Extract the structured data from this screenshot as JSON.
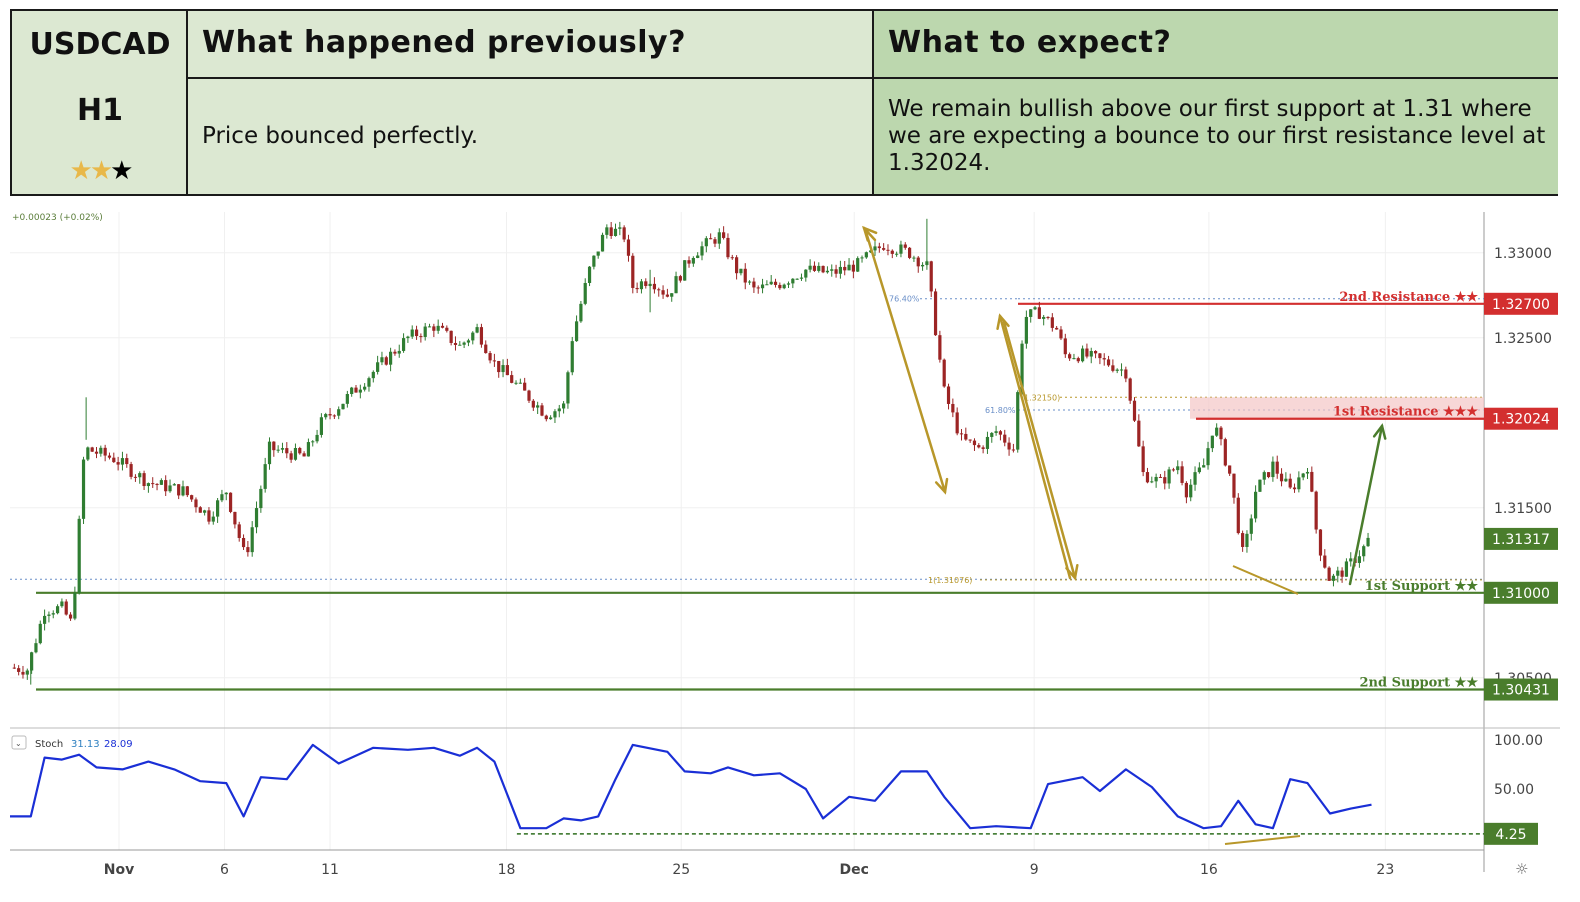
{
  "header": {
    "symbol": "USDCAD",
    "timeframe": "H1",
    "rating": {
      "filled": 2,
      "total": 3,
      "filled_color": "#e8b84a",
      "empty_color": "#000000"
    },
    "previous_title": "What happened previously?",
    "previous_text": "Price bounced perfectly.",
    "expect_title": "What to expect?",
    "expect_text": "We remain bullish above our first support at 1.31 where we are expecting a bounce to our first resistance level at 1.32024."
  },
  "colors": {
    "up_candle": "#2f7d32",
    "down_candle": "#9c2424",
    "resistance": "#d32f2f",
    "support": "#4a7d2c",
    "stoch_line": "#1a2fd6",
    "arrow_gold": "#b8972a",
    "arrow_green": "#4a7d2c",
    "fib": "#b8972a"
  },
  "chart_data": {
    "type": "candlestick",
    "change_readout": "+0.00023 (+0.02%)",
    "x_tick_labels": [
      "Nov",
      "6",
      "11",
      "18",
      "25",
      "Dec",
      "9",
      "16",
      "23"
    ],
    "y_tick_labels": [
      "1.33000",
      "1.32500",
      "1.31500",
      "1.30500"
    ],
    "ylim": [
      1.3024,
      1.3324
    ],
    "price_path": [
      [
        0,
        1.3056
      ],
      [
        1,
        1.3055
      ],
      [
        2,
        1.309
      ],
      [
        3,
        1.3091
      ],
      [
        3.6,
        1.3081
      ],
      [
        4.3,
        1.3185
      ],
      [
        6,
        1.3179
      ],
      [
        8,
        1.3165
      ],
      [
        10,
        1.316
      ],
      [
        11.5,
        1.3145
      ],
      [
        12.5,
        1.316
      ],
      [
        13.6,
        1.312
      ],
      [
        15,
        1.3185
      ],
      [
        17,
        1.318
      ],
      [
        18,
        1.32
      ],
      [
        19.5,
        1.3215
      ],
      [
        21,
        1.323
      ],
      [
        23,
        1.325
      ],
      [
        24.5,
        1.3257
      ],
      [
        26,
        1.3245
      ],
      [
        27,
        1.3255
      ],
      [
        28,
        1.3235
      ],
      [
        29.5,
        1.322
      ],
      [
        31,
        1.3205
      ],
      [
        32,
        1.321
      ],
      [
        32.5,
        1.325
      ],
      [
        33.5,
        1.329
      ],
      [
        34.5,
        1.3315
      ],
      [
        35.5,
        1.331
      ],
      [
        36,
        1.328
      ],
      [
        37,
        1.3285
      ],
      [
        38,
        1.3275
      ],
      [
        39.5,
        1.33
      ],
      [
        41,
        1.331
      ],
      [
        42,
        1.329
      ],
      [
        43,
        1.3278
      ],
      [
        44.5,
        1.3282
      ],
      [
        46,
        1.329
      ],
      [
        47.5,
        1.3288
      ],
      [
        49,
        1.3293
      ],
      [
        50.5,
        1.3305
      ],
      [
        52,
        1.33
      ],
      [
        53,
        1.3292
      ],
      [
        54,
        1.3218
      ],
      [
        55,
        1.319
      ],
      [
        56,
        1.3185
      ],
      [
        57,
        1.3195
      ],
      [
        58,
        1.3185
      ],
      [
        58.6,
        1.3262
      ],
      [
        59.5,
        1.3265
      ],
      [
        60.5,
        1.3255
      ],
      [
        61,
        1.324
      ],
      [
        62,
        1.324
      ],
      [
        63.5,
        1.3235
      ],
      [
        64.5,
        1.323
      ],
      [
        65.5,
        1.317
      ],
      [
        66.5,
        1.3165
      ],
      [
        67.5,
        1.3175
      ],
      [
        68,
        1.316
      ],
      [
        69,
        1.3175
      ],
      [
        69.6,
        1.32
      ],
      [
        70.5,
        1.317
      ],
      [
        71.3,
        1.312
      ],
      [
        72,
        1.316
      ],
      [
        73,
        1.3175
      ],
      [
        74,
        1.316
      ],
      [
        75,
        1.3175
      ],
      [
        75.6,
        1.313
      ],
      [
        76.3,
        1.3107
      ],
      [
        77.3,
        1.3115
      ],
      [
        78.3,
        1.3127
      ],
      [
        78.7,
        1.3135
      ]
    ],
    "levels": [
      {
        "name": "2nd Resistance",
        "stars": "★★",
        "value": 1.327,
        "label": "1.32700",
        "kind": "resistance"
      },
      {
        "name": "1st Resistance",
        "stars": "★★★",
        "value": 1.32024,
        "label": "1.32024",
        "kind": "resistance"
      },
      {
        "name": "1st Support",
        "stars": "★★",
        "value": 1.31,
        "label": "1.31000",
        "kind": "support"
      },
      {
        "name": "2nd Support",
        "stars": "★★",
        "value": 1.30431,
        "label": "1.30431",
        "kind": "support"
      }
    ],
    "current_price": "1.31317",
    "fib_labels": [
      "76.40%",
      "61.80%",
      "1.32150)",
      "1(1.31076)"
    ],
    "stochastic": {
      "name": "Stoch",
      "k_value": "31.13",
      "d_value": "28.09",
      "ylim": [
        0,
        100
      ],
      "y_tick_labels": [
        "100.00",
        "50.00"
      ],
      "marked_level": "4.25",
      "k_path": [
        [
          0,
          22
        ],
        [
          1.2,
          22
        ],
        [
          2,
          82
        ],
        [
          3,
          80
        ],
        [
          4,
          85
        ],
        [
          5,
          72
        ],
        [
          6.5,
          70
        ],
        [
          8,
          78
        ],
        [
          9.5,
          70
        ],
        [
          11,
          58
        ],
        [
          12.5,
          56
        ],
        [
          13.5,
          22
        ],
        [
          14.5,
          62
        ],
        [
          16,
          60
        ],
        [
          17.5,
          95
        ],
        [
          19,
          76
        ],
        [
          21,
          92
        ],
        [
          23,
          90
        ],
        [
          24.5,
          92
        ],
        [
          26,
          84
        ],
        [
          27,
          92
        ],
        [
          28,
          78
        ],
        [
          29.5,
          10
        ],
        [
          31,
          10
        ],
        [
          32,
          20
        ],
        [
          33,
          18
        ],
        [
          34,
          22
        ],
        [
          35,
          60
        ],
        [
          36,
          95
        ],
        [
          38,
          88
        ],
        [
          39,
          68
        ],
        [
          40.5,
          66
        ],
        [
          41.5,
          72
        ],
        [
          43,
          64
        ],
        [
          44.5,
          66
        ],
        [
          46,
          50
        ],
        [
          47,
          20
        ],
        [
          48.5,
          42
        ],
        [
          50,
          38
        ],
        [
          51.5,
          68
        ],
        [
          53,
          68
        ],
        [
          54,
          42
        ],
        [
          55.5,
          10
        ],
        [
          57,
          12
        ],
        [
          59,
          10
        ],
        [
          60,
          55
        ],
        [
          62,
          62
        ],
        [
          63,
          48
        ],
        [
          64.5,
          70
        ],
        [
          66,
          52
        ],
        [
          67.5,
          22
        ],
        [
          69,
          10
        ],
        [
          70,
          12
        ],
        [
          71,
          38
        ],
        [
          72,
          14
        ],
        [
          73,
          10
        ],
        [
          74,
          60
        ],
        [
          75,
          56
        ],
        [
          76.3,
          25
        ],
        [
          77.5,
          30
        ],
        [
          78.7,
          34
        ]
      ]
    }
  }
}
